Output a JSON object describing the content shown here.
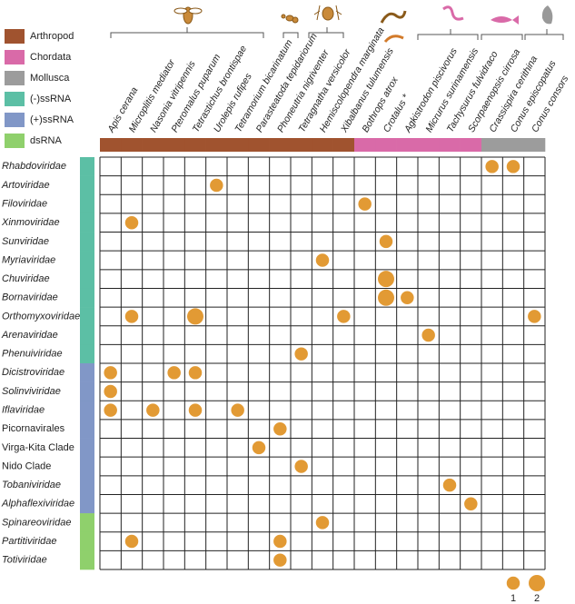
{
  "chart_data": {
    "type": "dot-matrix",
    "phyla": [
      {
        "name": "Arthropod",
        "color": "#a0532f",
        "hosts": [
          "Apis cerana",
          "Microplitis mediator",
          "Nasonia vitripennis",
          "Pteromalus puparum",
          "Tetrastichus brontispae",
          "Urolepis rufipes",
          "Tetramorium bicarinatum",
          "Parasteatoda tepidariorum",
          "Phoneutria nigriventer",
          "Tetragnatha versicolor",
          "Hemiscolopendra marginata",
          "Xibalbanus tulumensis"
        ]
      },
      {
        "name": "Chordata",
        "color": "#d96aa8",
        "hosts": [
          "Bothrops atrox",
          "Crotalus *",
          "Agkistrodon piscivorus",
          "Micrurus surinamensis",
          "Tachysurus fulvidraco",
          "Scorpaenopsis cirrosa"
        ]
      },
      {
        "name": "Mollusca",
        "color": "#9c9c9c",
        "hosts": [
          "Crassispira cerithina",
          "Conus episcopatus",
          "Conus consors"
        ]
      }
    ],
    "groups": [
      {
        "name": "(-)ssRNA",
        "color": "#5cbfa5",
        "families": [
          "Rhabdoviridae",
          "Artoviridae",
          "Filoviridae",
          "Xinmoviridae",
          "Sunviridae",
          "Myriaviridae",
          "Chuviridae",
          "Bornaviridae",
          "Orthomyxoviridae",
          "Arenaviridae",
          "Phenuiviridae"
        ]
      },
      {
        "name": "(+)ssRNA",
        "color": "#8197c7",
        "families": [
          "Dicistroviridae",
          "Solinviviridae",
          "Iflaviridae",
          "Picornavirales",
          "Virga-Kita Clade",
          "Nido Clade",
          "Tobaniviridae",
          "Alphaflexiviridae"
        ]
      },
      {
        "name": "dsRNA",
        "color": "#8fd06c",
        "families": [
          "Spinareoviridae",
          "Partitiviridae",
          "Totiviridae"
        ]
      }
    ],
    "values": [
      [
        0,
        0,
        0,
        0,
        0,
        0,
        0,
        0,
        0,
        0,
        0,
        0,
        0,
        0,
        0,
        0,
        0,
        0,
        1,
        1,
        0
      ],
      [
        0,
        0,
        0,
        0,
        0,
        1,
        0,
        0,
        0,
        0,
        0,
        0,
        0,
        0,
        0,
        0,
        0,
        0,
        0,
        0,
        0
      ],
      [
        0,
        0,
        0,
        0,
        0,
        0,
        0,
        0,
        0,
        0,
        0,
        0,
        1,
        0,
        0,
        0,
        0,
        0,
        0,
        0,
        0
      ],
      [
        0,
        1,
        0,
        0,
        0,
        0,
        0,
        0,
        0,
        0,
        0,
        0,
        0,
        0,
        0,
        0,
        0,
        0,
        0,
        0,
        0
      ],
      [
        0,
        0,
        0,
        0,
        0,
        0,
        0,
        0,
        0,
        0,
        0,
        0,
        0,
        1,
        0,
        0,
        0,
        0,
        0,
        0,
        0
      ],
      [
        0,
        0,
        0,
        0,
        0,
        0,
        0,
        0,
        0,
        0,
        1,
        0,
        0,
        0,
        0,
        0,
        0,
        0,
        0,
        0,
        0
      ],
      [
        0,
        0,
        0,
        0,
        0,
        0,
        0,
        0,
        0,
        0,
        0,
        0,
        0,
        2,
        0,
        0,
        0,
        0,
        0,
        0,
        0
      ],
      [
        0,
        0,
        0,
        0,
        0,
        0,
        0,
        0,
        0,
        0,
        0,
        0,
        0,
        2,
        1,
        0,
        0,
        0,
        0,
        0,
        0
      ],
      [
        0,
        1,
        0,
        0,
        2,
        0,
        0,
        0,
        0,
        0,
        0,
        1,
        0,
        0,
        0,
        0,
        0,
        0,
        0,
        0,
        1
      ],
      [
        0,
        0,
        0,
        0,
        0,
        0,
        0,
        0,
        0,
        0,
        0,
        0,
        0,
        0,
        0,
        1,
        0,
        0,
        0,
        0,
        0
      ],
      [
        0,
        0,
        0,
        0,
        0,
        0,
        0,
        0,
        0,
        1,
        0,
        0,
        0,
        0,
        0,
        0,
        0,
        0,
        0,
        0,
        0
      ],
      [
        1,
        0,
        0,
        1,
        1,
        0,
        0,
        0,
        0,
        0,
        0,
        0,
        0,
        0,
        0,
        0,
        0,
        0,
        0,
        0,
        0
      ],
      [
        1,
        0,
        0,
        0,
        0,
        0,
        0,
        0,
        0,
        0,
        0,
        0,
        0,
        0,
        0,
        0,
        0,
        0,
        0,
        0,
        0
      ],
      [
        1,
        0,
        1,
        0,
        1,
        0,
        1,
        0,
        0,
        0,
        0,
        0,
        0,
        0,
        0,
        0,
        0,
        0,
        0,
        0,
        0
      ],
      [
        0,
        0,
        0,
        0,
        0,
        0,
        0,
        0,
        1,
        0,
        0,
        0,
        0,
        0,
        0,
        0,
        0,
        0,
        0,
        0,
        0
      ],
      [
        0,
        0,
        0,
        0,
        0,
        0,
        0,
        1,
        0,
        0,
        0,
        0,
        0,
        0,
        0,
        0,
        0,
        0,
        0,
        0,
        0
      ],
      [
        0,
        0,
        0,
        0,
        0,
        0,
        0,
        0,
        0,
        1,
        0,
        0,
        0,
        0,
        0,
        0,
        0,
        0,
        0,
        0,
        0
      ],
      [
        0,
        0,
        0,
        0,
        0,
        0,
        0,
        0,
        0,
        0,
        0,
        0,
        0,
        0,
        0,
        0,
        1,
        0,
        0,
        0,
        0
      ],
      [
        0,
        0,
        0,
        0,
        0,
        0,
        0,
        0,
        0,
        0,
        0,
        0,
        0,
        0,
        0,
        0,
        0,
        1,
        0,
        0,
        0
      ],
      [
        0,
        0,
        0,
        0,
        0,
        0,
        0,
        0,
        0,
        0,
        1,
        0,
        0,
        0,
        0,
        0,
        0,
        0,
        0,
        0,
        0
      ],
      [
        0,
        1,
        0,
        0,
        0,
        0,
        0,
        0,
        1,
        0,
        0,
        0,
        0,
        0,
        0,
        0,
        0,
        0,
        0,
        0,
        0
      ],
      [
        0,
        0,
        0,
        0,
        0,
        0,
        0,
        0,
        1,
        0,
        0,
        0,
        0,
        0,
        0,
        0,
        0,
        0,
        0,
        0,
        0
      ]
    ],
    "dot_color": "#e29a34",
    "size_legend": [
      1,
      2
    ]
  }
}
